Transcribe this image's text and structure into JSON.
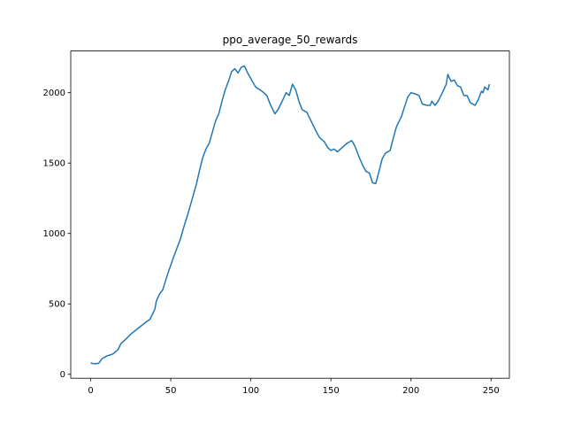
{
  "chart_data": {
    "type": "line",
    "title": "ppo_average_50_rewards",
    "x": [
      0,
      2,
      5,
      7,
      10,
      14,
      17,
      19,
      22,
      25,
      30,
      35,
      37,
      40,
      41,
      43,
      45,
      48,
      52,
      56,
      58,
      61,
      64,
      66,
      68,
      70,
      72,
      74,
      76,
      78,
      80,
      82,
      84,
      86,
      88,
      90,
      92,
      94,
      96,
      98,
      100,
      103,
      107,
      110,
      112,
      115,
      117,
      120,
      122,
      124,
      126,
      128,
      130,
      132,
      135,
      138,
      141,
      143,
      146,
      148,
      150,
      152,
      154,
      156,
      158,
      160,
      163,
      165,
      167,
      170,
      172,
      174,
      176,
      178,
      180,
      182,
      184,
      187,
      189,
      191,
      194,
      196,
      198,
      200,
      203,
      205,
      207,
      210,
      212,
      213,
      215,
      217,
      220,
      222,
      223,
      225,
      227,
      229,
      231,
      233,
      235,
      237,
      240,
      242,
      244,
      245,
      246,
      248,
      249
    ],
    "series": [
      {
        "color": "#1f77b4",
        "values": [
          80,
          75,
          78,
          110,
          130,
          145,
          175,
          220,
          250,
          285,
          330,
          375,
          390,
          460,
          520,
          570,
          600,
          710,
          840,
          960,
          1040,
          1150,
          1270,
          1350,
          1450,
          1540,
          1600,
          1640,
          1720,
          1800,
          1850,
          1940,
          2020,
          2080,
          2150,
          2170,
          2140,
          2180,
          2190,
          2140,
          2100,
          2040,
          2010,
          1980,
          1920,
          1850,
          1880,
          1950,
          2000,
          1980,
          2060,
          2020,
          1940,
          1880,
          1860,
          1790,
          1720,
          1680,
          1650,
          1610,
          1590,
          1600,
          1580,
          1600,
          1620,
          1640,
          1660,
          1620,
          1560,
          1480,
          1440,
          1430,
          1360,
          1355,
          1440,
          1530,
          1570,
          1590,
          1680,
          1760,
          1830,
          1900,
          1970,
          2000,
          1990,
          1980,
          1920,
          1910,
          1910,
          1940,
          1910,
          1940,
          2010,
          2060,
          2130,
          2080,
          2090,
          2050,
          2040,
          1980,
          1980,
          1930,
          1910,
          1950,
          2010,
          2000,
          2040,
          2020,
          2060
        ]
      }
    ],
    "xlim": [
      -12.45,
      261.45
    ],
    "ylim": [
      -28,
      2296
    ],
    "xticks": [
      0,
      50,
      100,
      150,
      200,
      250
    ],
    "yticks": [
      0,
      500,
      1000,
      1500,
      2000
    ]
  }
}
